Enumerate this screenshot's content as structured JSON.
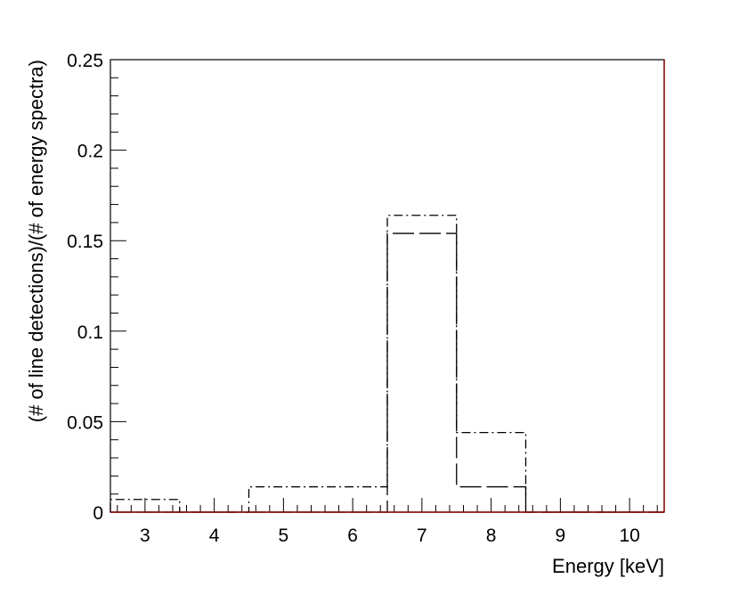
{
  "chart_data": {
    "type": "histogram",
    "title": "",
    "xlabel": "Energy [keV]",
    "ylabel": "(# of line detections)/(# of energy spectra)",
    "xlim": [
      2.5,
      10.5
    ],
    "ylim": [
      0,
      0.25
    ],
    "x_ticks": [
      3,
      4,
      5,
      6,
      7,
      8,
      9,
      10
    ],
    "y_ticks": [
      {
        "value": 0,
        "label": "0"
      },
      {
        "value": 0.05,
        "label": "0.05"
      },
      {
        "value": 0.1,
        "label": "0.1"
      },
      {
        "value": 0.15,
        "label": "0.15"
      },
      {
        "value": 0.2,
        "label": "0.2"
      },
      {
        "value": 0.25,
        "label": "0.25"
      }
    ],
    "bin_edges": [
      2.5,
      3.5,
      4.5,
      5.5,
      6.5,
      7.5,
      8.5,
      9.5,
      10.5
    ],
    "grid": false,
    "legend": "none",
    "series": [
      {
        "line_style": "dashed",
        "color": "#000000",
        "values": [
          0.0,
          0.0,
          0.0,
          0.0,
          0.154,
          0.014,
          0.0,
          0.0
        ]
      },
      {
        "line_style": "dash-dot",
        "color": "#000000",
        "values": [
          0.007,
          0.0,
          0.014,
          0.014,
          0.164,
          0.044,
          0.0,
          0.0
        ]
      }
    ],
    "frame_right_color": "#8b0000"
  }
}
